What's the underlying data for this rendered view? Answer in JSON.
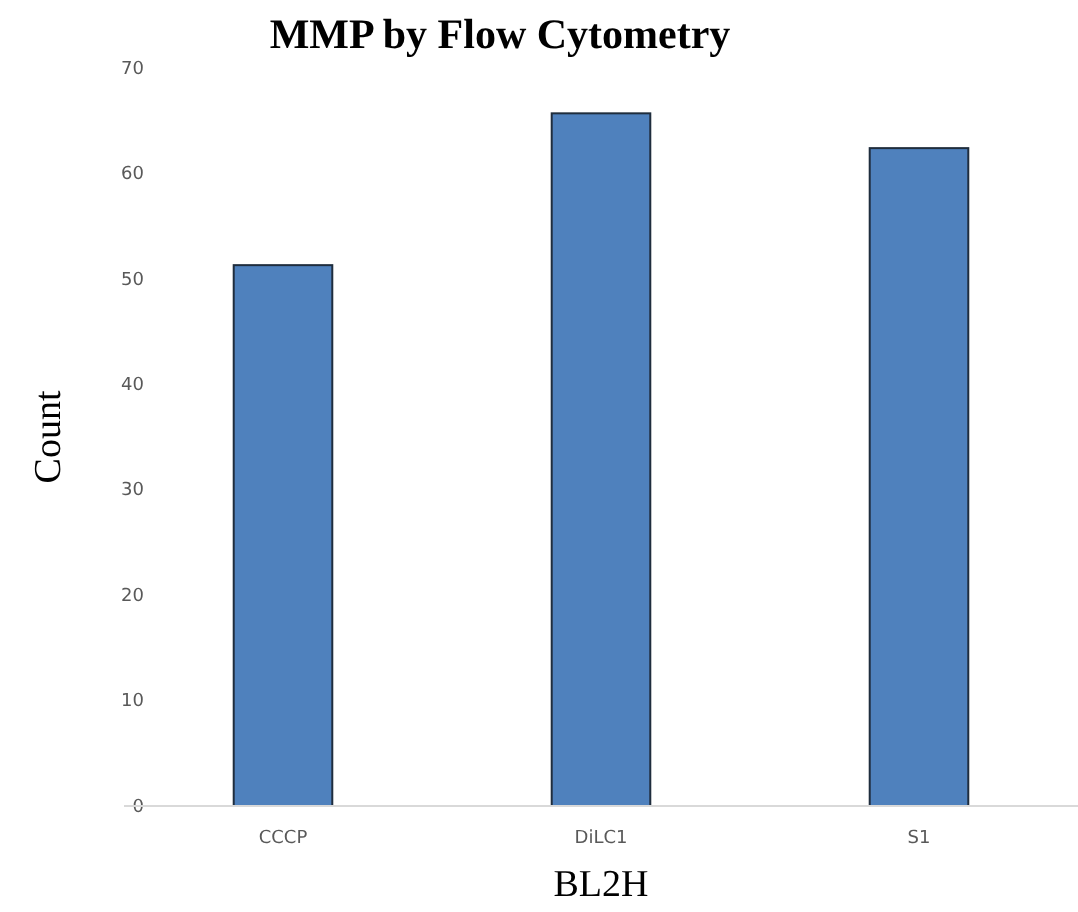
{
  "chart_data": {
    "type": "bar",
    "title": "MMP by Flow Cytometry",
    "xlabel": "BL2H",
    "ylabel": "Count",
    "categories": [
      "CCCP",
      "DiLC1",
      "S1"
    ],
    "values": [
      51.3,
      65.7,
      62.4
    ],
    "color": "#4f81bd",
    "ylim": [
      0,
      70
    ],
    "yticks": [
      0,
      10,
      20,
      30,
      40,
      50,
      60,
      70
    ],
    "grid": false
  }
}
